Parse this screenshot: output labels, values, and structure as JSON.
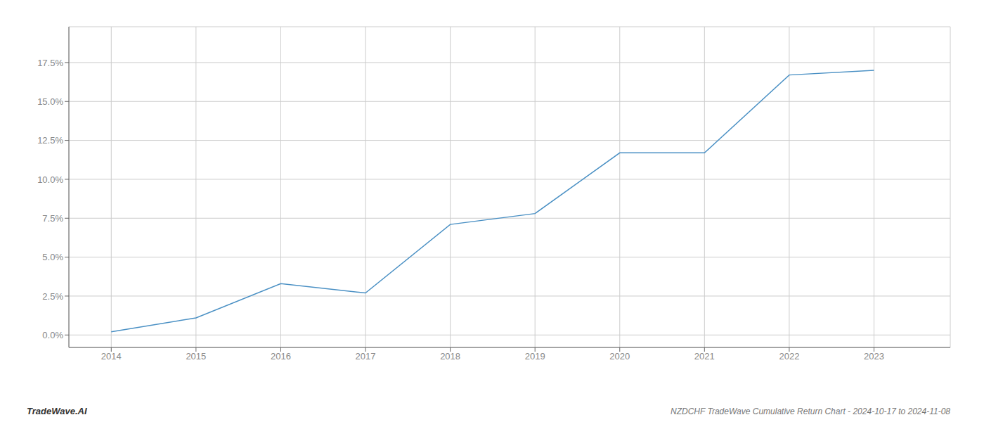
{
  "chart_data": {
    "type": "line",
    "title": "NZDCHF TradeWave Cumulative Return Chart - 2024-10-17 to 2024-11-08",
    "annotations": [
      "TradeWave.AI"
    ],
    "x": [
      2014,
      2015,
      2016,
      2017,
      2018,
      2019,
      2020,
      2021,
      2022,
      2023
    ],
    "values": [
      0.002,
      0.011,
      0.033,
      0.027,
      0.071,
      0.078,
      0.117,
      0.117,
      0.167,
      0.17
    ],
    "color": "#4a90c4",
    "xlim": [
      2013.5,
      2023.9
    ],
    "ylim": [
      -0.008,
      0.198
    ],
    "xticks": [
      2014,
      2015,
      2016,
      2017,
      2018,
      2019,
      2020,
      2021,
      2022,
      2023
    ],
    "yticks": [
      {
        "value": 0.0,
        "label": "0.0%"
      },
      {
        "value": 0.025,
        "label": "2.5%"
      },
      {
        "value": 0.05,
        "label": "5.0%"
      },
      {
        "value": 0.075,
        "label": "7.5%"
      },
      {
        "value": 0.1,
        "label": "10.0%"
      },
      {
        "value": 0.125,
        "label": "12.5%"
      },
      {
        "value": 0.15,
        "label": "15.0%"
      },
      {
        "value": 0.175,
        "label": "17.5%"
      }
    ],
    "grid": true
  }
}
